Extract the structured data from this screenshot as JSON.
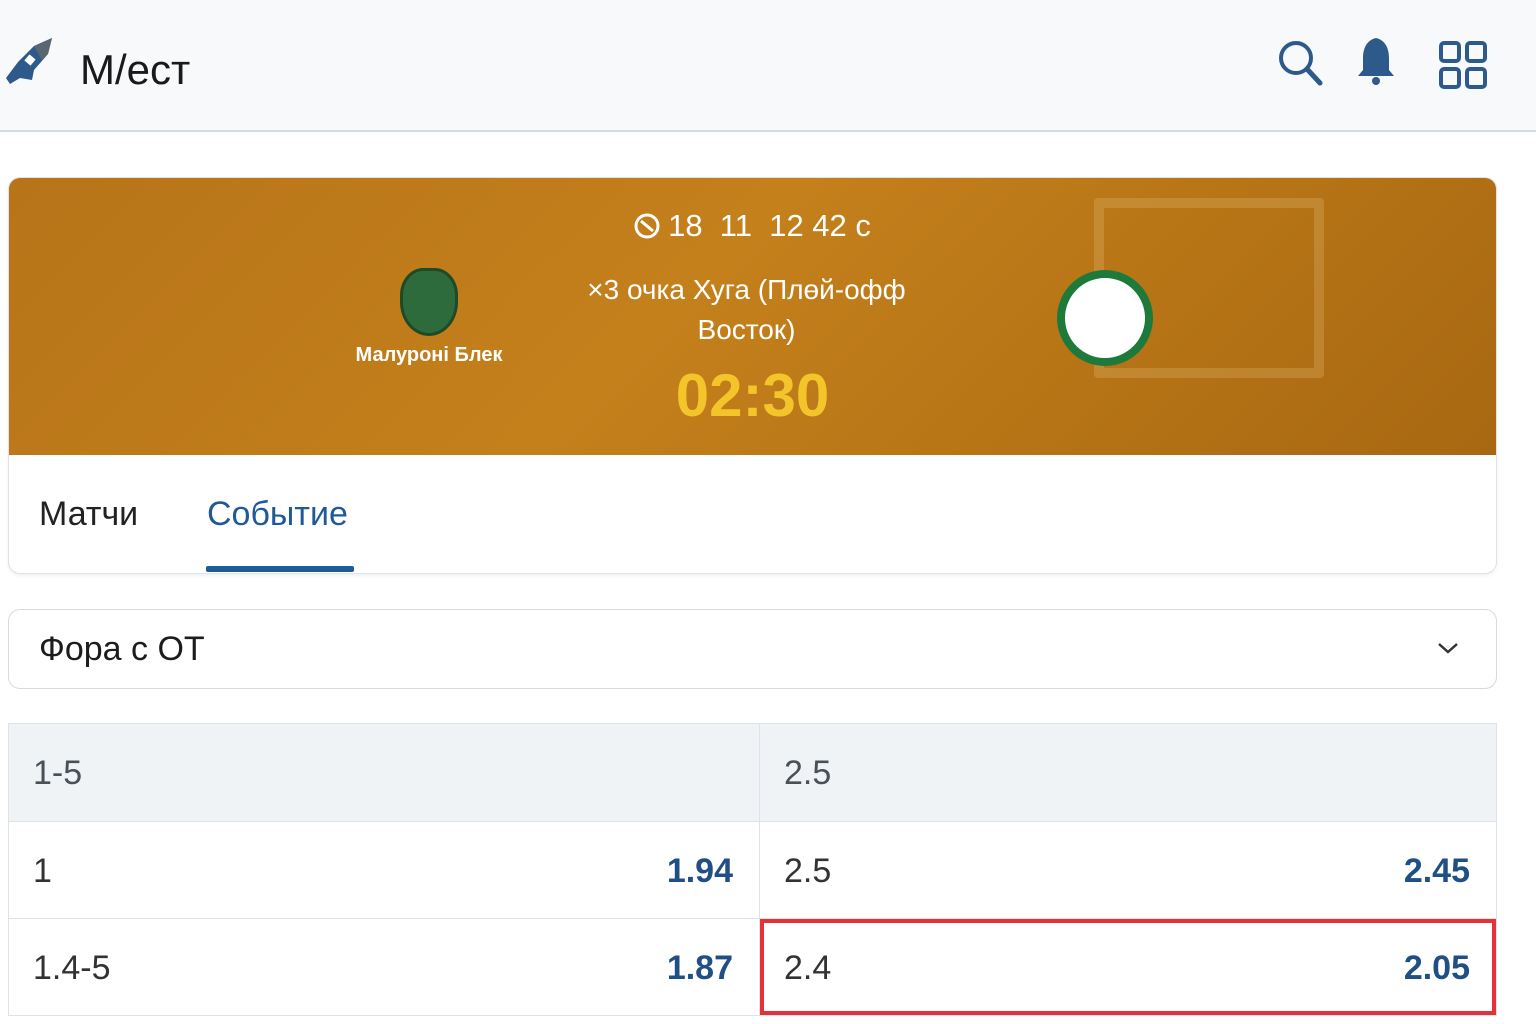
{
  "header": {
    "brand": "M/ecт",
    "icons": [
      "logo-icon",
      "search-icon",
      "bell-icon",
      "grid-icon"
    ]
  },
  "event": {
    "datetime": "18  11  12 42 с",
    "title": "×3 очка Хуга (Плөй-офф Восток)",
    "clock": "02:30",
    "home_team": "Малуроні Блек"
  },
  "tabs": [
    {
      "label": "Матчи",
      "active": false
    },
    {
      "label": "Событие",
      "active": true
    }
  ],
  "market": {
    "selected": "Фора с ОТ"
  },
  "odds_table": {
    "header": [
      "1-5",
      "2.5"
    ],
    "rows": [
      {
        "left_label": "1",
        "left_odds": "1.94",
        "right_label": "2.5",
        "right_odds": "2.45"
      },
      {
        "left_label": "1.4-5",
        "left_odds": "1.87",
        "right_label": "2.4",
        "right_odds": "2.05",
        "right_highlighted": true
      }
    ]
  },
  "colors": {
    "accent": "#1f5a96",
    "clock": "#f4c52a",
    "banner": "#c4801b",
    "highlight": "#e53238"
  }
}
